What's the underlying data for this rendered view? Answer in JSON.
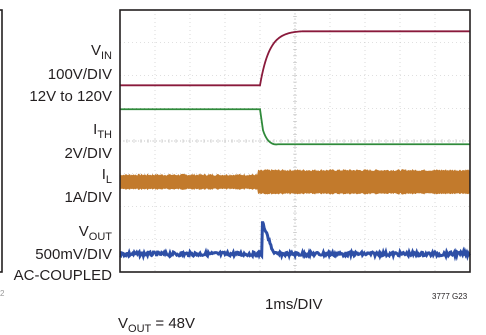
{
  "chart_data": {
    "type": "line",
    "title": "",
    "x_axis": {
      "label": "1ms/DIV",
      "divisions": 10,
      "trigger_division": 4.0
    },
    "y_axis": {
      "divisions": 8
    },
    "grid": true,
    "colors": {
      "VIN": "#8a1a3c",
      "ITH": "#2f8a3a",
      "IL": "#c27a2c",
      "VOUT": "#2e4fa6",
      "grid": "#c0c0c0",
      "frame": "#231f20"
    },
    "series": [
      {
        "name": "VIN",
        "label_main": "V",
        "label_sub": "IN",
        "scale": "100V/DIV",
        "note": "12V to 120V",
        "step": {
          "before_V": 12,
          "after_V": 120,
          "start_ms": 4.0,
          "rise_ms": 0.55
        },
        "level_div_before": 5.7,
        "level_div_after": 7.35
      },
      {
        "name": "ITH",
        "label_main": "I",
        "label_sub": "TH",
        "scale": "2V/DIV",
        "level_div_before": 4.97,
        "level_div_after": 3.9,
        "dip_div": 3.85
      },
      {
        "name": "IL",
        "label_main": "I",
        "label_sub": "L",
        "scale": "1A/DIV",
        "center_div": 2.75,
        "ripple_div_before": 0.42,
        "ripple_div_after": 0.7
      },
      {
        "name": "VOUT",
        "label_main": "V",
        "label_sub": "OUT",
        "scale": "500mV/DIV",
        "coupling": "AC-COUPLED",
        "level_div": 0.55,
        "spike_div": 1.55
      }
    ],
    "footnote": "V",
    "footnote_sub": "OUT",
    "footnote_rest": " = 48V",
    "figure_id": "3777 G23",
    "cut_marks": [
      "2"
    ]
  }
}
